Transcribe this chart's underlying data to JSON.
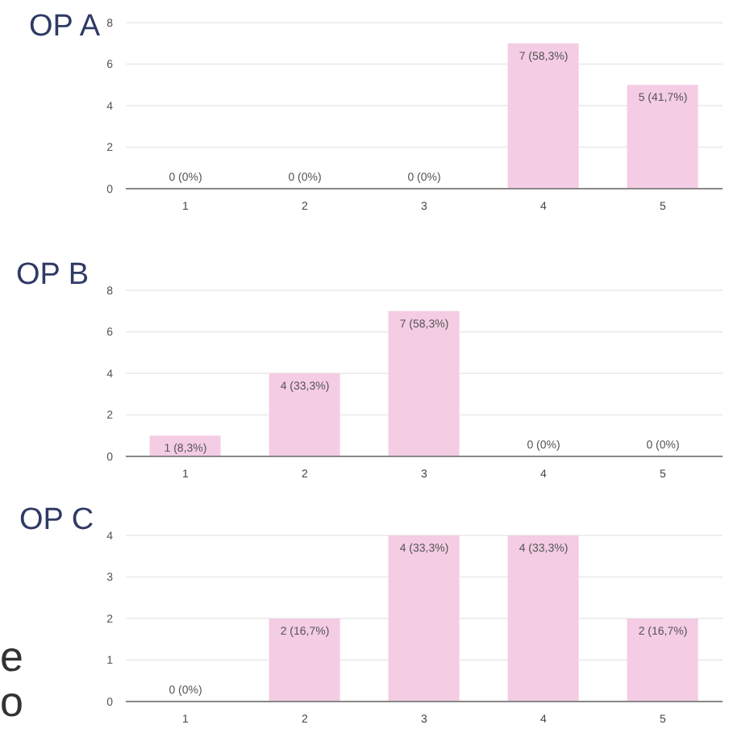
{
  "chart_data": [
    {
      "type": "bar",
      "title": "OP A",
      "categories": [
        "1",
        "2",
        "3",
        "4",
        "5"
      ],
      "values": [
        0,
        0,
        0,
        7,
        5
      ],
      "color": "#f4cce4",
      "value_labels": [
        "0 (0%)",
        "0 (0%)",
        "0 (0%)",
        "7 (58,3%)",
        "5 (41,7%)"
      ],
      "ylim": [
        0,
        8
      ],
      "yticks": [
        0,
        2,
        4,
        6,
        8
      ],
      "grid": "y"
    },
    {
      "type": "bar",
      "title": "OP B",
      "categories": [
        "1",
        "2",
        "3",
        "4",
        "5"
      ],
      "values": [
        1,
        4,
        7,
        0,
        0
      ],
      "color": "#f4cce4",
      "value_labels": [
        "1 (8,3%)",
        "4 (33,3%)",
        "7 (58,3%)",
        "0 (0%)",
        "0 (0%)"
      ],
      "ylim": [
        0,
        8
      ],
      "yticks": [
        0,
        2,
        4,
        6,
        8
      ],
      "grid": "y"
    },
    {
      "type": "bar",
      "title": "OP C",
      "categories": [
        "1",
        "2",
        "3",
        "4",
        "5"
      ],
      "values": [
        0,
        2,
        4,
        4,
        2
      ],
      "color": "#f4cce4",
      "value_labels": [
        "0 (0%)",
        "2 (16,7%)",
        "4 (33,3%)",
        "4 (33,3%)",
        "2 (16,7%)"
      ],
      "ylim": [
        0,
        4
      ],
      "yticks": [
        0,
        1,
        2,
        3,
        4
      ],
      "grid": "y",
      "annotations": [
        "e",
        "o"
      ]
    }
  ]
}
